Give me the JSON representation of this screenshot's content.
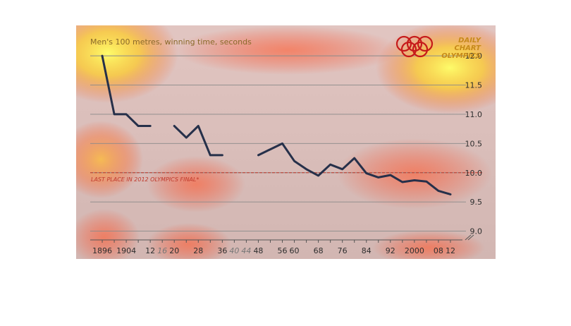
{
  "chart_data": {
    "type": "line",
    "title": "Men's 100 metres, winning time, seconds",
    "logo_text": [
      "DAILY",
      "CHART",
      "OLYMPICS"
    ],
    "reference_line": {
      "label": "LAST PLACE IN 2012 OLYMPICS FINAL*",
      "value": 10.0
    },
    "ylim": [
      8.85,
      12.4
    ],
    "yticks": [
      "12.0",
      "11.5",
      "11.0",
      "10.5",
      "10.0",
      "9.5",
      "9.0"
    ],
    "xlim": [
      1892,
      2016
    ],
    "xticks": [
      {
        "label": "1896",
        "year": 1896,
        "missing": false
      },
      {
        "label": "1904",
        "year": 1904,
        "missing": false
      },
      {
        "label": "12",
        "year": 1912,
        "missing": false
      },
      {
        "label": "16",
        "year": 1916,
        "missing": true
      },
      {
        "label": "20",
        "year": 1920,
        "missing": false
      },
      {
        "label": "28",
        "year": 1928,
        "missing": false
      },
      {
        "label": "36",
        "year": 1936,
        "missing": false
      },
      {
        "label": "40",
        "year": 1940,
        "missing": true
      },
      {
        "label": "44",
        "year": 1944,
        "missing": true
      },
      {
        "label": "48",
        "year": 1948,
        "missing": false
      },
      {
        "label": "56",
        "year": 1956,
        "missing": false
      },
      {
        "label": "60",
        "year": 1960,
        "missing": false
      },
      {
        "label": "68",
        "year": 1968,
        "missing": false
      },
      {
        "label": "76",
        "year": 1976,
        "missing": false
      },
      {
        "label": "84",
        "year": 1984,
        "missing": false
      },
      {
        "label": "92",
        "year": 1992,
        "missing": false
      },
      {
        "label": "2000",
        "year": 2000,
        "missing": false
      },
      {
        "label": "08",
        "year": 2008,
        "missing": false
      },
      {
        "label": "12",
        "year": 2012,
        "missing": false
      }
    ],
    "series": [
      {
        "segments": [
          [
            [
              1896,
              12.0
            ],
            [
              1900,
              11.0
            ],
            [
              1904,
              11.0
            ],
            [
              1908,
              10.8
            ],
            [
              1912,
              10.8
            ]
          ],
          [
            [
              1920,
              10.8
            ],
            [
              1924,
              10.6
            ],
            [
              1928,
              10.8
            ],
            [
              1932,
              10.3
            ],
            [
              1936,
              10.3
            ]
          ],
          [
            [
              1948,
              10.3
            ],
            [
              1952,
              10.4
            ],
            [
              1956,
              10.5
            ],
            [
              1960,
              10.2
            ],
            [
              1964,
              10.06
            ],
            [
              1968,
              9.95
            ],
            [
              1972,
              10.14
            ],
            [
              1976,
              10.06
            ],
            [
              1980,
              10.25
            ],
            [
              1984,
              9.99
            ],
            [
              1988,
              9.92
            ],
            [
              1992,
              9.96
            ],
            [
              1996,
              9.84
            ],
            [
              2000,
              9.87
            ],
            [
              2004,
              9.85
            ],
            [
              2008,
              9.69
            ],
            [
              2012,
              9.63
            ]
          ]
        ]
      }
    ]
  },
  "colors": {
    "line": "#26304a",
    "reference": "#c0392b",
    "grid": "#8a8a8a",
    "rings": "#c61a1a",
    "logo_text": "#c78a1a",
    "tick_missing": "#777777",
    "tick_label": "#2e2e2e"
  }
}
